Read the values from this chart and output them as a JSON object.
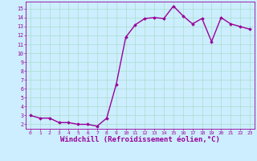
{
  "x": [
    0,
    1,
    2,
    3,
    4,
    5,
    6,
    7,
    8,
    9,
    10,
    11,
    12,
    13,
    14,
    15,
    16,
    17,
    18,
    19,
    20,
    21,
    22,
    23
  ],
  "y": [
    3.0,
    2.7,
    2.7,
    2.2,
    2.2,
    2.0,
    2.0,
    1.8,
    2.7,
    6.5,
    11.8,
    13.2,
    13.9,
    14.0,
    13.9,
    15.3,
    14.2,
    13.3,
    13.9,
    11.3,
    14.0,
    13.3,
    13.0,
    12.7
  ],
  "line_color": "#990099",
  "marker": "D",
  "markersize": 1.8,
  "linewidth": 1.0,
  "xlabel": "Windchill (Refroidissement éolien,°C)",
  "xlabel_fontsize": 6.5,
  "bg_color": "#cceeff",
  "grid_color": "#aaddcc",
  "tick_color": "#990099",
  "label_color": "#990099",
  "xlim": [
    -0.5,
    23.5
  ],
  "ylim": [
    1.5,
    15.8
  ],
  "yticks": [
    2,
    3,
    4,
    5,
    6,
    7,
    8,
    9,
    10,
    11,
    12,
    13,
    14,
    15
  ],
  "xticks": [
    0,
    1,
    2,
    3,
    4,
    5,
    6,
    7,
    8,
    9,
    10,
    11,
    12,
    13,
    14,
    15,
    16,
    17,
    18,
    19,
    20,
    21,
    22,
    23
  ]
}
